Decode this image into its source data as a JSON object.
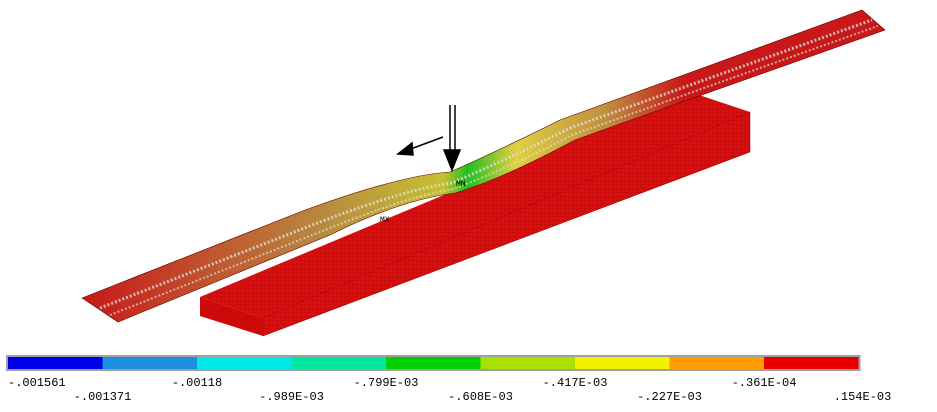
{
  "plot": {
    "markers": [
      "MN",
      "MX"
    ]
  },
  "legend": {
    "colors": [
      "#0000e8",
      "#1a8fe0",
      "#00e8e8",
      "#00e8a0",
      "#00d000",
      "#a8e000",
      "#f4f000",
      "#ff9c00",
      "#e80000"
    ],
    "labels": [
      "-.001561",
      "-.001371",
      "-.00118",
      "-.989E-03",
      "-.799E-03",
      "-.608E-03",
      "-.417E-03",
      "-.227E-03",
      "-.361E-04",
      ".154E-03"
    ]
  }
}
